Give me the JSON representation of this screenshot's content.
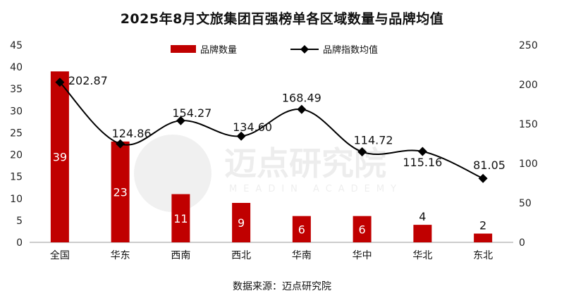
{
  "title": "2025年8月文旅集团百强榜单各区域数量与品牌均值",
  "source": "数据来源：迈点研究院",
  "watermark": {
    "main": "迈点研究院",
    "sub": "MEADIN ACADEMY"
  },
  "chart_data": {
    "type": "bar",
    "categories": [
      "全国",
      "华东",
      "西南",
      "西北",
      "华南",
      "华中",
      "华北",
      "东北"
    ],
    "series": [
      {
        "name": "品牌数量",
        "type": "bar",
        "axis": "left",
        "color": "#c00000",
        "values": [
          39,
          23,
          11,
          9,
          6,
          6,
          4,
          2
        ]
      },
      {
        "name": "品牌指数均值",
        "type": "line",
        "axis": "right",
        "color": "#000000",
        "marker": "diamond",
        "values": [
          202.87,
          124.86,
          154.27,
          134.6,
          168.49,
          114.72,
          115.16,
          81.05
        ],
        "labels": [
          "202.87",
          "124.86",
          "154.27",
          "134.60",
          "168.49",
          "114.72",
          "115.16",
          "81.05"
        ]
      }
    ],
    "y_left": {
      "range": [
        0,
        45
      ],
      "ticks": [
        0,
        5,
        10,
        15,
        20,
        25,
        30,
        35,
        40,
        45
      ]
    },
    "y_right": {
      "range": [
        0,
        250
      ],
      "ticks": [
        0,
        50,
        100,
        150,
        200,
        250
      ]
    },
    "grid": false,
    "legend_position": "top-center"
  }
}
